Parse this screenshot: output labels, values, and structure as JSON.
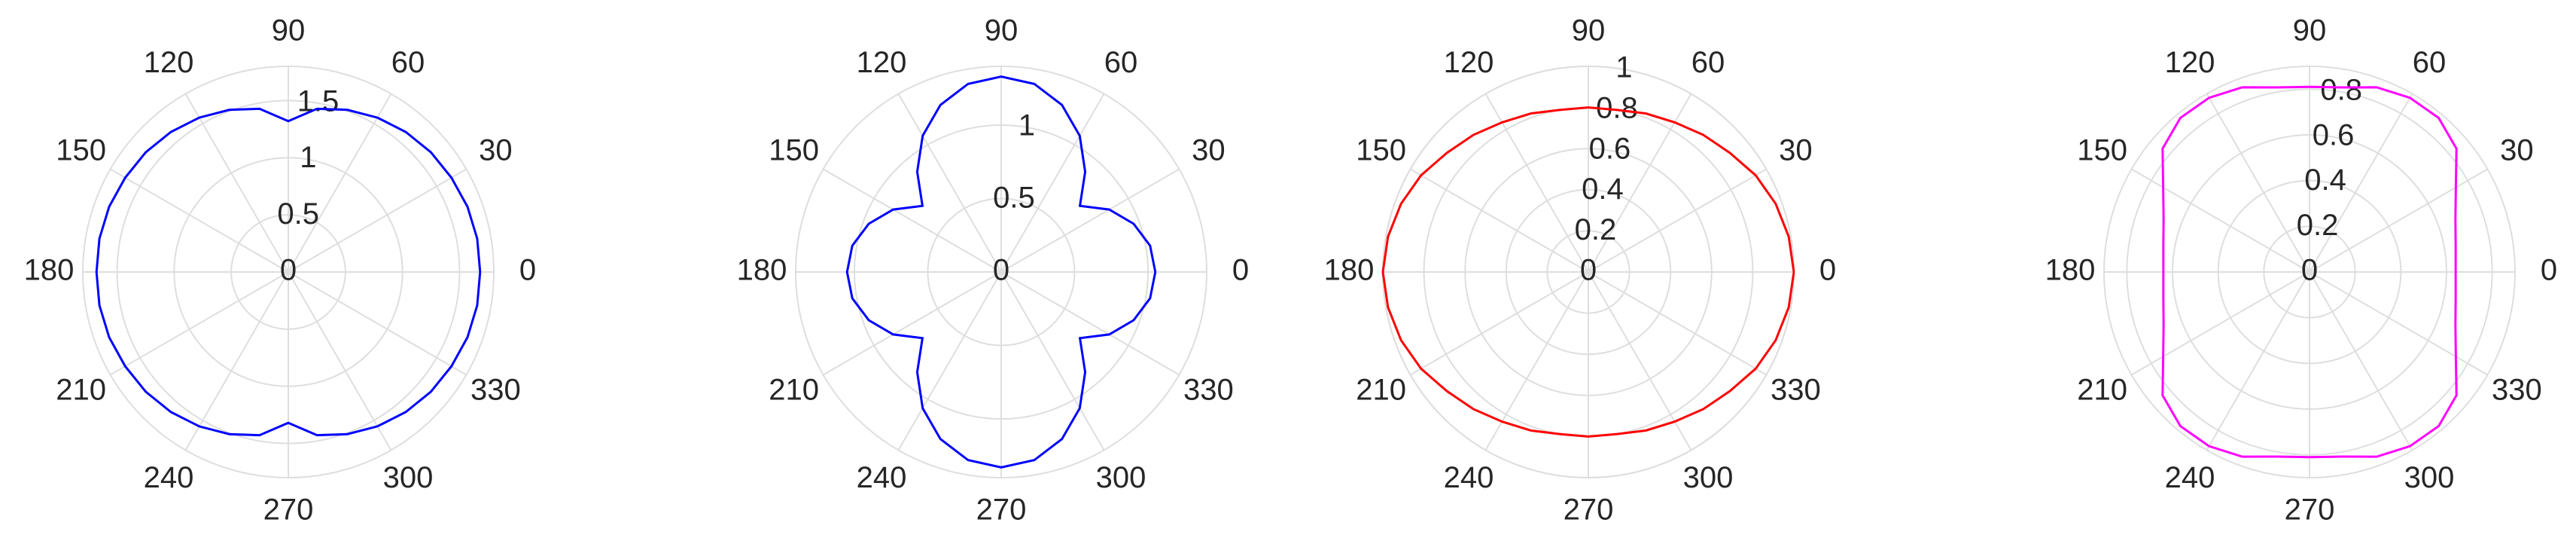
{
  "chart_data": [
    {
      "type": "polar",
      "color": "#0000ff",
      "grid": true,
      "rlim": [
        0,
        1.8
      ],
      "rticks": [
        0,
        0.5,
        1,
        1.5
      ],
      "thetaticks": [
        0,
        30,
        60,
        90,
        120,
        150,
        180,
        210,
        240,
        270,
        300,
        330
      ],
      "theta": [
        0,
        10,
        20,
        30,
        40,
        50,
        60,
        70,
        80,
        90,
        100,
        110,
        120,
        130,
        140,
        150,
        160,
        170,
        180,
        190,
        200,
        210,
        220,
        230,
        240,
        250,
        260,
        270,
        280,
        290,
        300,
        310,
        320,
        330,
        340,
        350,
        360
      ],
      "r": [
        1.68,
        1.68,
        1.67,
        1.65,
        1.63,
        1.6,
        1.56,
        1.51,
        1.45,
        1.32,
        1.45,
        1.51,
        1.56,
        1.6,
        1.63,
        1.65,
        1.67,
        1.68,
        1.68,
        1.68,
        1.67,
        1.65,
        1.63,
        1.6,
        1.56,
        1.51,
        1.45,
        1.32,
        1.45,
        1.51,
        1.56,
        1.6,
        1.63,
        1.65,
        1.67,
        1.68,
        1.68
      ]
    },
    {
      "type": "polar",
      "color": "#0000ff",
      "grid": true,
      "rlim": [
        0,
        1.4
      ],
      "rticks": [
        0,
        0.5,
        1
      ],
      "thetaticks": [
        0,
        30,
        60,
        90,
        120,
        150,
        180,
        210,
        240,
        270,
        300,
        330
      ],
      "theta": [
        0,
        10,
        20,
        30,
        40,
        50,
        60,
        70,
        80,
        90,
        100,
        110,
        120,
        130,
        140,
        150,
        160,
        170,
        180,
        190,
        200,
        210,
        220,
        230,
        240,
        250,
        260,
        270,
        280,
        290,
        300,
        310,
        320,
        330,
        340,
        350,
        360
      ],
      "r": [
        1.05,
        1.03,
        0.96,
        0.85,
        0.7,
        0.89,
        1.07,
        1.21,
        1.3,
        1.33,
        1.3,
        1.21,
        1.07,
        0.89,
        0.7,
        0.85,
        0.96,
        1.03,
        1.05,
        1.03,
        0.96,
        0.85,
        0.7,
        0.89,
        1.07,
        1.21,
        1.3,
        1.33,
        1.3,
        1.21,
        1.07,
        0.89,
        0.7,
        0.85,
        0.96,
        1.03,
        1.05
      ]
    },
    {
      "type": "polar",
      "color": "#ff0000",
      "grid": true,
      "rlim": [
        0,
        1
      ],
      "rticks": [
        0,
        0.2,
        0.4,
        0.6,
        0.8,
        1
      ],
      "thetaticks": [
        0,
        30,
        60,
        90,
        120,
        150,
        180,
        210,
        240,
        270,
        300,
        330
      ],
      "theta": [
        0,
        10,
        20,
        30,
        40,
        50,
        60,
        70,
        80,
        90,
        100,
        110,
        120,
        130,
        140,
        150,
        160,
        170,
        180,
        190,
        200,
        210,
        220,
        230,
        240,
        250,
        260,
        270,
        280,
        290,
        300,
        310,
        320,
        330,
        340,
        350,
        360
      ],
      "r": [
        1,
        0.99,
        0.97,
        0.94,
        0.9,
        0.87,
        0.84,
        0.82,
        0.8,
        0.8,
        0.8,
        0.82,
        0.84,
        0.87,
        0.9,
        0.94,
        0.97,
        0.99,
        1,
        0.99,
        0.97,
        0.94,
        0.9,
        0.87,
        0.84,
        0.82,
        0.8,
        0.8,
        0.8,
        0.82,
        0.84,
        0.87,
        0.9,
        0.94,
        0.97,
        0.99,
        1
      ]
    },
    {
      "type": "polar",
      "color": "#ff00ff",
      "grid": true,
      "rlim": [
        0,
        0.9
      ],
      "rticks": [
        0,
        0.2,
        0.4,
        0.6,
        0.8
      ],
      "thetaticks": [
        0,
        30,
        60,
        90,
        120,
        150,
        180,
        210,
        240,
        270,
        300,
        330
      ],
      "theta": [
        0,
        10,
        20,
        30,
        40,
        50,
        60,
        70,
        80,
        90,
        100,
        110,
        120,
        130,
        140,
        150,
        160,
        170,
        180,
        190,
        200,
        210,
        220,
        230,
        240,
        250,
        260,
        270,
        280,
        290,
        300,
        310,
        320,
        330,
        340,
        350,
        360
      ],
      "r": [
        0.64,
        0.65,
        0.68,
        0.74,
        0.84,
        0.88,
        0.88,
        0.86,
        0.82,
        0.81,
        0.82,
        0.86,
        0.88,
        0.88,
        0.84,
        0.74,
        0.68,
        0.65,
        0.64,
        0.65,
        0.68,
        0.74,
        0.84,
        0.88,
        0.88,
        0.86,
        0.82,
        0.81,
        0.82,
        0.86,
        0.88,
        0.88,
        0.84,
        0.74,
        0.68,
        0.65,
        0.64
      ]
    }
  ]
}
